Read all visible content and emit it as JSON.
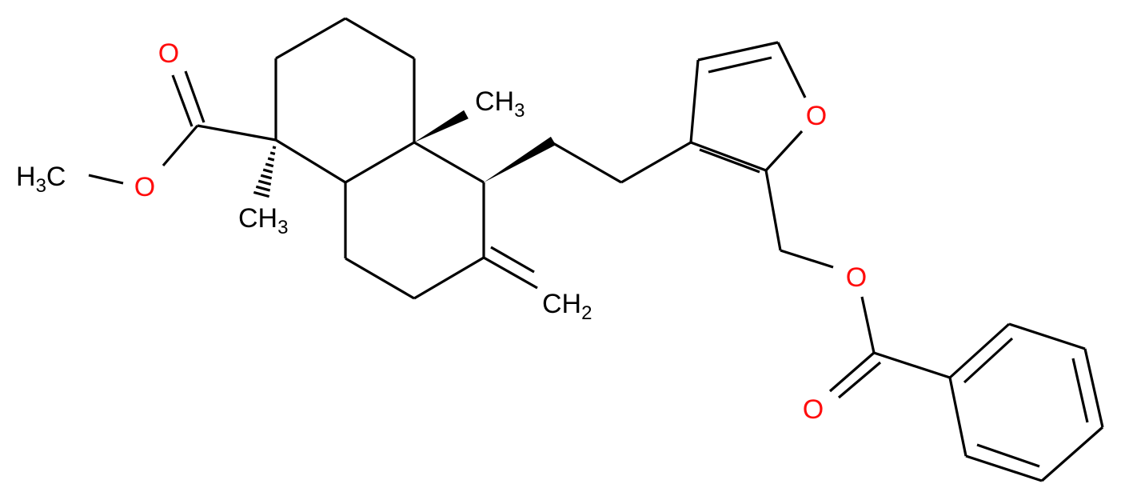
{
  "colors": {
    "bond": "#000000",
    "carbon_label": "#000000",
    "oxygen_label": "#ff0d0d"
  },
  "atom_labels": {
    "ester_carbonyl_o": "O",
    "ester_o": "O",
    "methoxy": {
      "main": "H",
      "sub": "3",
      "tail": "C"
    },
    "c1_methyl": {
      "main": "CH",
      "sub": "3"
    },
    "c8a_methyl": {
      "main": "CH",
      "sub": "3"
    },
    "methylene": {
      "main": "CH",
      "sub": "2"
    },
    "furan_o": "O",
    "benzoate_o": "O",
    "benzoate_carbonyl_o": "O"
  }
}
